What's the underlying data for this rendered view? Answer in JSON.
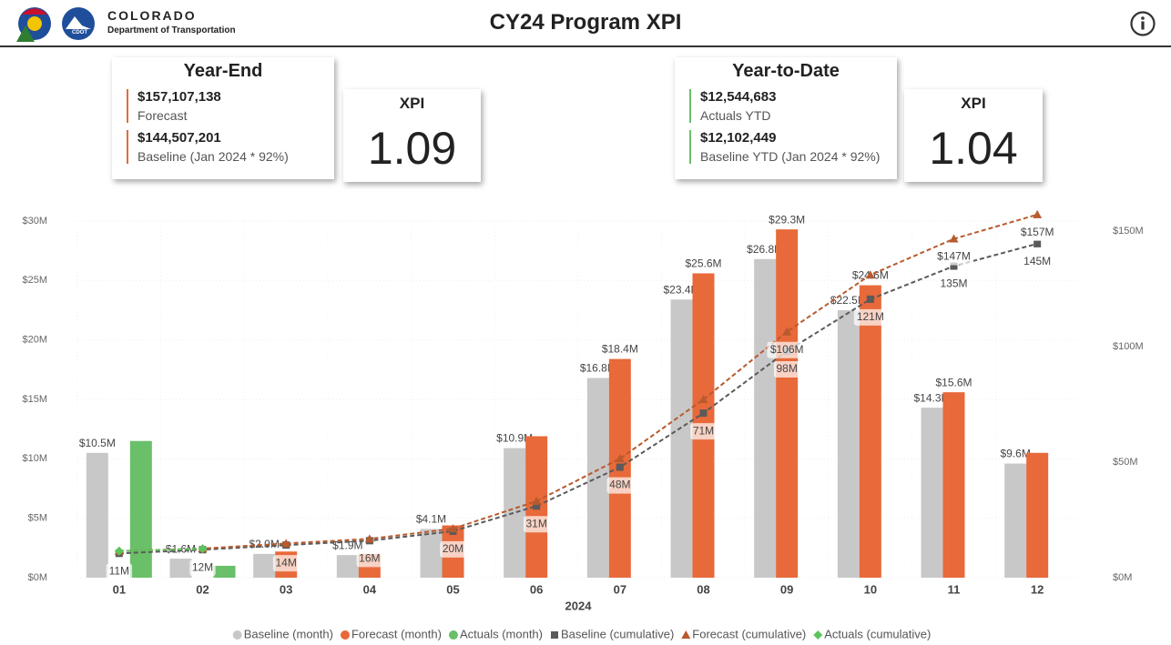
{
  "header": {
    "logo_title": "COLORADO",
    "logo_subtitle": "Department of Transportation",
    "logo_badge": "CDOT",
    "title": "CY24 Program XPI"
  },
  "cards": {
    "year_end": {
      "title": "Year-End",
      "forecast_amount": "$157,107,138",
      "forecast_label": "Forecast",
      "baseline_amount": "$144,507,201",
      "baseline_label": "Baseline (Jan 2024 * 92%)",
      "xpi_title": "XPI",
      "xpi_value": "1.09"
    },
    "year_to_date": {
      "title": "Year-to-Date",
      "actuals_amount": "$12,544,683",
      "actuals_label": "Actuals YTD",
      "baseline_amount": "$12,102,449",
      "baseline_label": "Baseline YTD (Jan 2024 * 92%)",
      "xpi_title": "XPI",
      "xpi_value": "1.04"
    }
  },
  "chart_data": {
    "type": "combo",
    "x_label": "2024",
    "categories": [
      "01",
      "02",
      "03",
      "04",
      "05",
      "06",
      "07",
      "08",
      "09",
      "10",
      "11",
      "12"
    ],
    "ylim": [
      0,
      30
    ],
    "yticks": [
      {
        "value": 0,
        "label": "$0M"
      },
      {
        "value": 5,
        "label": "$5M"
      },
      {
        "value": 10,
        "label": "$10M"
      },
      {
        "value": 15,
        "label": "$15M"
      },
      {
        "value": 20,
        "label": "$20M"
      },
      {
        "value": 25,
        "label": "$25M"
      },
      {
        "value": 30,
        "label": "$30M"
      }
    ],
    "y2lim": [
      0,
      154.3
    ],
    "y2ticks": [
      {
        "value": 0,
        "label": "$0M"
      },
      {
        "value": 50,
        "label": "$50M"
      },
      {
        "value": 100,
        "label": "$100M"
      },
      {
        "value": 150,
        "label": "$150M"
      }
    ],
    "grid": true,
    "legend": "bottom",
    "series": [
      {
        "name": "Baseline (month)",
        "type": "bar",
        "marker": "circle",
        "color": "#c8c8c8",
        "values": [
          10.5,
          1.6,
          2.0,
          1.9,
          4.1,
          10.9,
          16.8,
          23.4,
          26.8,
          22.5,
          14.3,
          9.6
        ],
        "value_labels": [
          "$10.5M",
          "$1.6M",
          "$2.0M",
          "$1.9M",
          "$4.1M",
          "$10.9M",
          "$16.8M",
          "$23.4M",
          "$26.8M",
          "$22.5M",
          "$14.3M",
          "$9.6M"
        ]
      },
      {
        "name": "Forecast (month)",
        "type": "bar",
        "marker": "circle",
        "color": "#e8693a",
        "values": [
          null,
          null,
          2.2,
          2.0,
          4.4,
          11.9,
          18.4,
          25.6,
          29.3,
          24.6,
          15.6,
          10.5
        ],
        "value_labels": [
          null,
          null,
          null,
          null,
          null,
          null,
          "$18.4M",
          "$25.6M",
          "$29.3M",
          "$24.6M",
          "$15.6M",
          null
        ]
      },
      {
        "name": "Actuals (month)",
        "type": "bar",
        "marker": "circle",
        "color": "#6abf69",
        "values": [
          11.5,
          1.0,
          null,
          null,
          null,
          null,
          null,
          null,
          null,
          null,
          null,
          null
        ]
      },
      {
        "name": "Baseline (cumulative)",
        "type": "line",
        "marker": "square",
        "axis": "y2",
        "color": "#5a5a5a",
        "values": [
          10.5,
          12.1,
          14.1,
          16.0,
          20.1,
          31.0,
          47.8,
          71.2,
          98.0,
          120.5,
          134.8,
          144.5
        ],
        "value_labels": [
          "11M",
          "12M",
          "14M",
          "16M",
          "20M",
          "31M",
          "48M",
          "71M",
          "98M",
          "121M",
          "135M",
          "145M"
        ]
      },
      {
        "name": "Forecast (cumulative)",
        "type": "line",
        "marker": "triangle",
        "axis": "y2",
        "color": "#b85a2e",
        "values": [
          11.5,
          12.6,
          14.8,
          16.8,
          21.2,
          33.1,
          51.5,
          77.1,
          106.4,
          131.0,
          146.6,
          157.1
        ],
        "value_labels": [
          null,
          null,
          null,
          null,
          null,
          null,
          null,
          null,
          "$106M",
          null,
          "$147M",
          "$157M"
        ]
      },
      {
        "name": "Actuals (cumulative)",
        "type": "line",
        "marker": "diamond",
        "axis": "y2",
        "color": "#5bc45b",
        "values": [
          11.5,
          12.5,
          null,
          null,
          null,
          null,
          null,
          null,
          null,
          null,
          null,
          null
        ]
      }
    ]
  }
}
